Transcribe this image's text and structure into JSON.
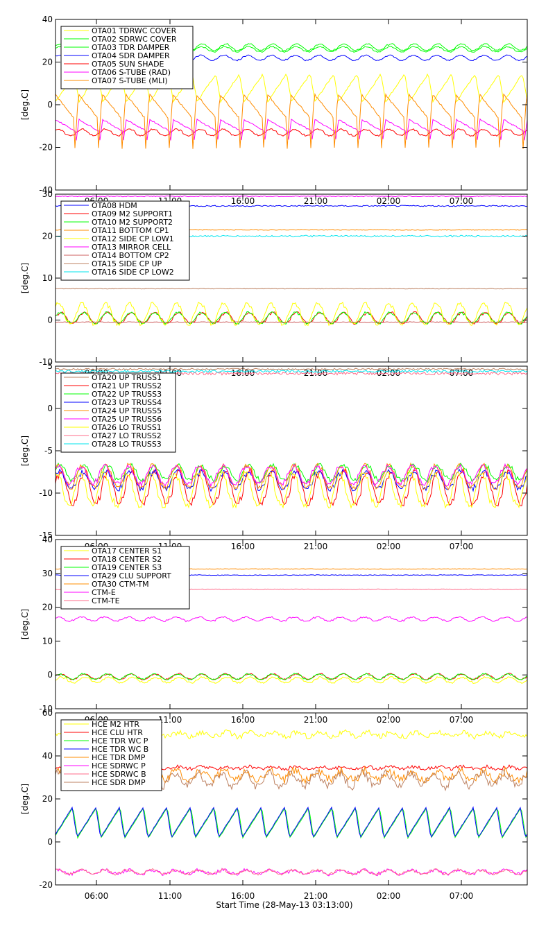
{
  "xlabel": "Start Time (28-May-13 03:13:00)",
  "ylabel": "[deg.C]",
  "x_ticks": [
    "06:00",
    "11:00",
    "16:00",
    "21:00",
    "02:00",
    "07:00"
  ],
  "chart_data": [
    {
      "type": "line",
      "ylim": [
        -40,
        40
      ],
      "yticks": [
        "-40",
        "-20",
        "0",
        "20",
        "40"
      ],
      "series": [
        {
          "name": "OTA01 TDRWC COVER",
          "color": "#ffff00",
          "base": 8,
          "amp": 6.5,
          "kind": "ramp",
          "noise": 0.4
        },
        {
          "name": "OTA02 SDRWC COVER",
          "color": "#00ff00",
          "base": 27,
          "amp": 1.5,
          "kind": "step",
          "noise": 0.2
        },
        {
          "name": "OTA03 TDR DAMPER",
          "color": "#00ff00",
          "base": 26,
          "amp": 1.2,
          "kind": "step",
          "noise": 0.2
        },
        {
          "name": "OTA04 SDR DAMPER",
          "color": "#0000ff",
          "base": 22,
          "amp": 1.2,
          "kind": "step",
          "noise": 0.2
        },
        {
          "name": "OTA05 SUN SHADE",
          "color": "#ff0000",
          "base": -13,
          "amp": 1.5,
          "kind": "step",
          "noise": 0.3
        },
        {
          "name": "OTA06 S-TUBE (RAD)",
          "color": "#ff00ff",
          "base": -13,
          "amp": 6,
          "kind": "spike",
          "noise": 0.3
        },
        {
          "name": "OTA07 S-TUBE (MLI)",
          "color": "#ff8c00",
          "base": -8,
          "amp": 13,
          "kind": "spike",
          "noise": 0.4
        }
      ]
    },
    {
      "type": "line",
      "ylim": [
        -10,
        30
      ],
      "yticks": [
        "-10",
        "0",
        "10",
        "20",
        "30"
      ],
      "series": [
        {
          "name": "OTA08 HDM",
          "color": "#0000ff",
          "base": 27.2,
          "amp": 0.3,
          "kind": "flat",
          "noise": 0.15
        },
        {
          "name": "OTA09 M2 SUPPORT1",
          "color": "#ff0000",
          "base": 0.5,
          "amp": 1.3,
          "kind": "step",
          "noise": 0.2
        },
        {
          "name": "OTA10 M2 SUPPORT2",
          "color": "#00ff00",
          "base": 0.5,
          "amp": 1.3,
          "kind": "step",
          "noise": 0.2
        },
        {
          "name": "OTA11 BOTTOM CP1",
          "color": "#ff8c00",
          "base": 21.5,
          "amp": 0.2,
          "kind": "flat",
          "noise": 0.1
        },
        {
          "name": "OTA12 SIDE CP LOW1",
          "color": "#ffff00",
          "base": 1.5,
          "amp": 2.5,
          "kind": "step",
          "noise": 0.3
        },
        {
          "name": "OTA13 MIRROR CELL",
          "color": "#ff00ff",
          "base": 29.5,
          "amp": 0.2,
          "kind": "flat",
          "noise": 0.1
        },
        {
          "name": "OTA14 BOTTOM CP2",
          "color": "#cd5c5c",
          "base": -0.5,
          "amp": 0.5,
          "kind": "flat",
          "noise": 0.1
        },
        {
          "name": "OTA15 SIDE CP UP",
          "color": "#bc8060",
          "base": 7.5,
          "amp": 0.3,
          "kind": "flat",
          "noise": 0.1
        },
        {
          "name": "OTA16 SIDE CP LOW2",
          "color": "#00e5ee",
          "base": 20,
          "amp": 0.3,
          "kind": "flat",
          "noise": 0.2
        }
      ]
    },
    {
      "type": "line",
      "ylim": [
        -15,
        8
      ],
      "yticks": [
        "-15",
        "-10",
        "-5",
        "0",
        "5"
      ],
      "series": [
        {
          "name": "OTA20 UP TRUSS1",
          "color": "#bc8060",
          "base": 7.6,
          "amp": 0.2,
          "kind": "flat",
          "noise": 0.1
        },
        {
          "name": "OTA21 UP TRUSS2",
          "color": "#ff0000",
          "base": -8.5,
          "amp": 2.2,
          "kind": "step",
          "noise": 0.3
        },
        {
          "name": "OTA22 UP TRUSS3",
          "color": "#00ff00",
          "base": -6.5,
          "amp": 1.0,
          "kind": "step",
          "noise": 0.3
        },
        {
          "name": "OTA23 UP TRUSS4",
          "color": "#0000ff",
          "base": -7.5,
          "amp": 1.2,
          "kind": "step",
          "noise": 0.3
        },
        {
          "name": "OTA24 UP TRUSS5",
          "color": "#ff8c00",
          "base": -7.0,
          "amp": 1.5,
          "kind": "step",
          "noise": 0.3
        },
        {
          "name": "OTA25 UP TRUSS6",
          "color": "#ff00ff",
          "base": -6.8,
          "amp": 1.2,
          "kind": "step",
          "noise": 0.3
        },
        {
          "name": "OTA26 LO TRUSS1",
          "color": "#ffff00",
          "base": -8.8,
          "amp": 2.2,
          "kind": "step",
          "noise": 0.3
        },
        {
          "name": "OTA27 LO TRUSS2",
          "color": "#ff6b8a",
          "base": 7.0,
          "amp": 0.4,
          "kind": "flat",
          "noise": 0.2
        },
        {
          "name": "OTA28 LO TRUSS3",
          "color": "#00e5ee",
          "base": 7.3,
          "amp": 0.3,
          "kind": "flat",
          "noise": 0.15
        }
      ]
    },
    {
      "type": "line",
      "ylim": [
        -10,
        40
      ],
      "yticks": [
        "-10",
        "0",
        "10",
        "20",
        "30",
        "40"
      ],
      "series": [
        {
          "name": "OTA17 CENTER S1",
          "color": "#ffff00",
          "base": -1.5,
          "amp": 0.8,
          "kind": "step",
          "noise": 0.2
        },
        {
          "name": "OTA18 CENTER S2",
          "color": "#ff0000",
          "base": -0.5,
          "amp": 0.8,
          "kind": "step",
          "noise": 0.2
        },
        {
          "name": "OTA19 CENTER S3",
          "color": "#00ff00",
          "base": -0.5,
          "amp": 0.8,
          "kind": "step",
          "noise": 0.2
        },
        {
          "name": "OTA29 CLU SUPPORT",
          "color": "#0000ff",
          "base": 29.5,
          "amp": 0.3,
          "kind": "flat",
          "noise": 0.1
        },
        {
          "name": "OTA30 CTM-TM",
          "color": "#ff8c00",
          "base": 31.3,
          "amp": 0.2,
          "kind": "flat",
          "noise": 0.1
        },
        {
          "name": "CTM-E",
          "color": "#ff00ff",
          "base": 16.5,
          "amp": 0.6,
          "kind": "step",
          "noise": 0.2
        },
        {
          "name": "CTM-TE",
          "color": "#ff6b8a",
          "base": 25.3,
          "amp": 0.3,
          "kind": "flat",
          "noise": 0.1
        }
      ]
    },
    {
      "type": "line",
      "ylim": [
        -20,
        60
      ],
      "yticks": [
        "-20",
        "0",
        "20",
        "40",
        "60"
      ],
      "series": [
        {
          "name": "HCE M2 HTR",
          "color": "#ffff00",
          "base": 50,
          "amp": 1,
          "kind": "noisy",
          "noise": 1.2
        },
        {
          "name": "HCE CLU HTR",
          "color": "#ff0000",
          "base": 34.5,
          "amp": 0.5,
          "kind": "noisy",
          "noise": 0.8
        },
        {
          "name": "HCE TDR WC P",
          "color": "#00ff00",
          "base": 9,
          "amp": 7,
          "kind": "ramp",
          "noise": 0.2
        },
        {
          "name": "HCE TDR WC B",
          "color": "#0000ff",
          "base": 9,
          "amp": 7,
          "kind": "ramp",
          "noise": 0.2
        },
        {
          "name": "HCE TDR DMP",
          "color": "#ff8c00",
          "base": 31,
          "amp": 2,
          "kind": "noisy",
          "noise": 2.0
        },
        {
          "name": "HCE SDRWC P",
          "color": "#ff00ff",
          "base": -14,
          "amp": 1,
          "kind": "noisy",
          "noise": 0.8
        },
        {
          "name": "HCE SDRWC B",
          "color": "#ff6b8a",
          "base": -14,
          "amp": 1,
          "kind": "noisy",
          "noise": 0.6
        },
        {
          "name": "HCE SDR DMP",
          "color": "#bc8060",
          "base": 29,
          "amp": 3,
          "kind": "noisy",
          "noise": 2.0
        }
      ]
    }
  ]
}
